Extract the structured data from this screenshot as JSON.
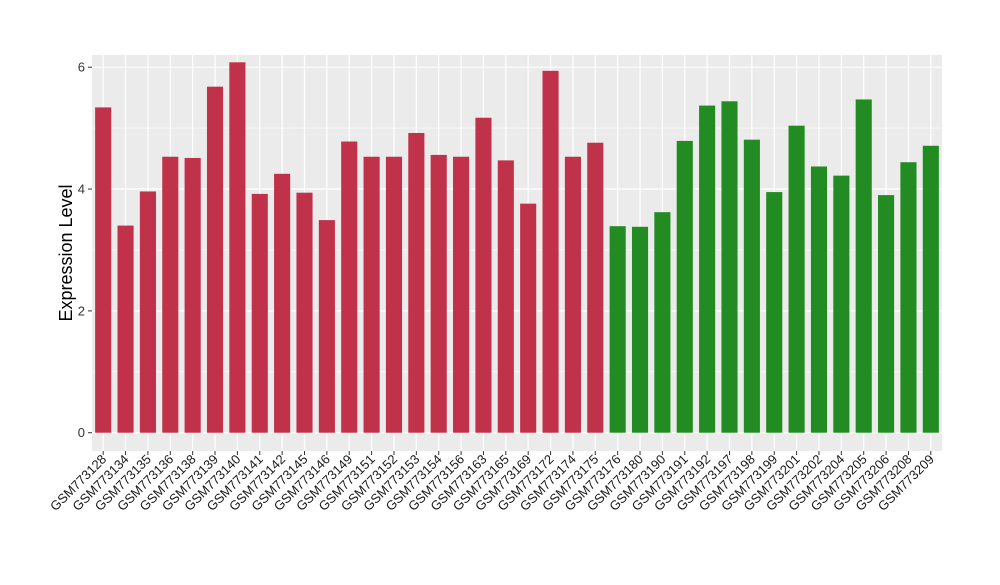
{
  "chart_data": {
    "type": "bar",
    "title": "",
    "xlabel": "",
    "ylabel": "Expression Level",
    "ylim": [
      -0.3,
      6.2
    ],
    "yticks": [
      0,
      2,
      4,
      6
    ],
    "grid": true,
    "colors": {
      "group1": "#C0314A",
      "group2": "#228B22",
      "panel": "#EBEBEB",
      "gridline": "#FFFFFF"
    },
    "categories": [
      "GSM773128",
      "GSM773134",
      "GSM773135",
      "GSM773136",
      "GSM773138",
      "GSM773139",
      "GSM773140",
      "GSM773141",
      "GSM773142",
      "GSM773145",
      "GSM773146",
      "GSM773149",
      "GSM773151",
      "GSM773152",
      "GSM773153",
      "GSM773154",
      "GSM773156",
      "GSM773163",
      "GSM773165",
      "GSM773169",
      "GSM773172",
      "GSM773174",
      "GSM773175",
      "GSM773176",
      "GSM773180",
      "GSM773190",
      "GSM773191",
      "GSM773192",
      "GSM773197",
      "GSM773198",
      "GSM773199",
      "GSM773201",
      "GSM773202",
      "GSM773204",
      "GSM773205",
      "GSM773206",
      "GSM773208",
      "GSM773209"
    ],
    "values": [
      5.34,
      3.4,
      3.96,
      4.53,
      4.51,
      5.68,
      6.08,
      3.92,
      4.25,
      3.94,
      3.49,
      4.78,
      4.53,
      4.53,
      4.92,
      4.56,
      4.53,
      5.17,
      4.47,
      3.76,
      5.94,
      4.53,
      4.76,
      3.39,
      3.38,
      3.62,
      4.79,
      5.37,
      5.44,
      4.81,
      3.95,
      5.04,
      4.37,
      4.22,
      5.47,
      3.9,
      4.44,
      4.71
    ],
    "groups": [
      1,
      1,
      1,
      1,
      1,
      1,
      1,
      1,
      1,
      1,
      1,
      1,
      1,
      1,
      1,
      1,
      1,
      1,
      1,
      1,
      1,
      1,
      1,
      2,
      2,
      2,
      2,
      2,
      2,
      2,
      2,
      2,
      2,
      2,
      2,
      2,
      2,
      2
    ]
  }
}
